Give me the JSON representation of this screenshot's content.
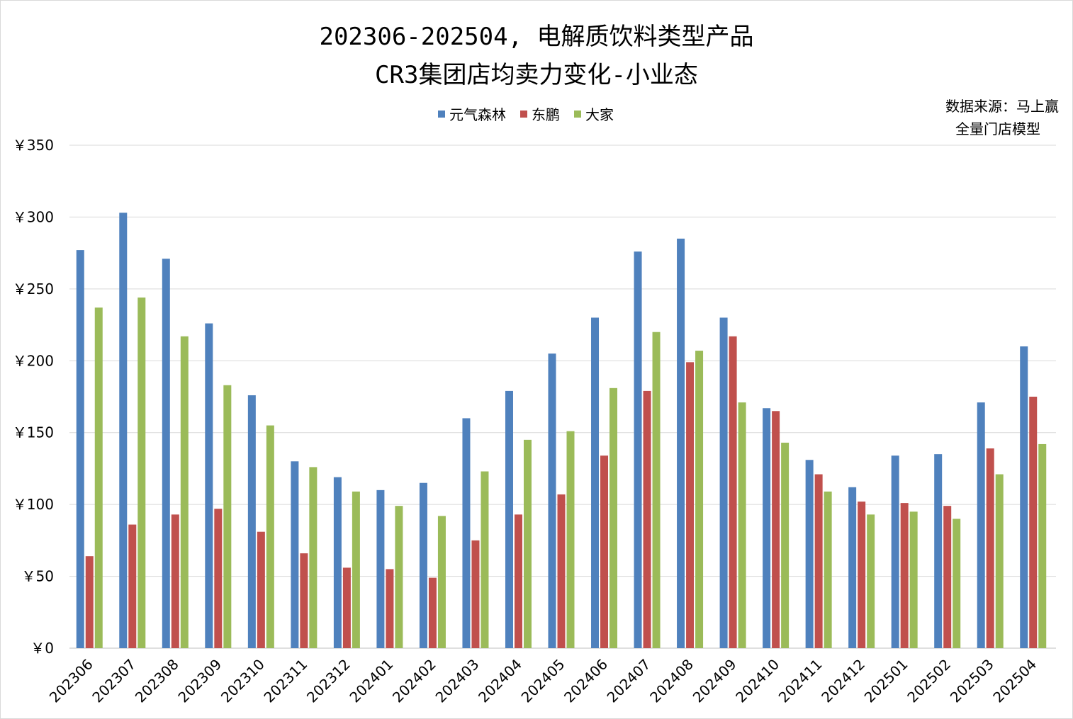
{
  "chart_data": {
    "type": "bar",
    "title_lines": [
      "202306-202504, 电解质饮料类型产品",
      "CR3集团店均卖力变化-小业态"
    ],
    "source_lines": [
      "数据来源：马上赢",
      "全量门店模型"
    ],
    "categories": [
      "202306",
      "202307",
      "202308",
      "202309",
      "202310",
      "202311",
      "202312",
      "202401",
      "202402",
      "202403",
      "202404",
      "202405",
      "202406",
      "202407",
      "202408",
      "202409",
      "202410",
      "202411",
      "202412",
      "202501",
      "202502",
      "202503",
      "202504"
    ],
    "series": [
      {
        "name": "元气森林",
        "color": "#4F81BD",
        "values": [
          277,
          303,
          271,
          226,
          176,
          130,
          119,
          110,
          115,
          160,
          179,
          205,
          230,
          276,
          285,
          230,
          167,
          131,
          112,
          134,
          135,
          171,
          210
        ]
      },
      {
        "name": "东鹏",
        "color": "#C0504D",
        "values": [
          64,
          86,
          93,
          97,
          81,
          66,
          56,
          55,
          49,
          75,
          93,
          107,
          134,
          179,
          199,
          217,
          165,
          121,
          102,
          101,
          99,
          139,
          175
        ]
      },
      {
        "name": "大家",
        "color": "#9BBB59",
        "values": [
          237,
          244,
          217,
          183,
          155,
          126,
          109,
          99,
          92,
          123,
          145,
          151,
          181,
          220,
          207,
          171,
          143,
          109,
          93,
          95,
          90,
          121,
          142
        ]
      }
    ],
    "ylim": [
      0,
      350
    ],
    "yticks": [
      0,
      50,
      100,
      150,
      200,
      250,
      300,
      350
    ],
    "ytick_labels": [
      "￥0",
      "￥50",
      "￥100",
      "￥150",
      "￥200",
      "￥250",
      "￥300",
      "￥350"
    ],
    "xlabel": "",
    "ylabel": "",
    "grid": true,
    "legend_position": "top-center"
  }
}
